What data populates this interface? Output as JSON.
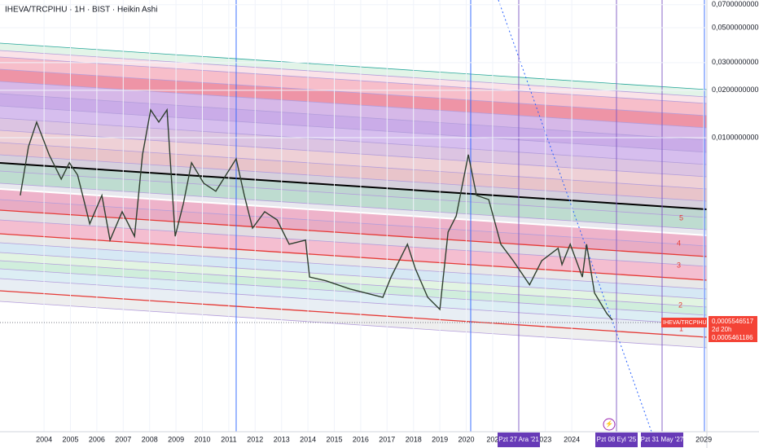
{
  "chart_data": {
    "type": "line",
    "title": "IHEVA/TRCPIHU · 1H · BIST · Heikin Ashi",
    "log_scale": true,
    "grid": true,
    "x": [
      2003.1,
      2003.41,
      2003.72,
      2004.19,
      2004.65,
      2004.96,
      2005.27,
      2005.73,
      2006.19,
      2006.5,
      2006.96,
      2007.43,
      2007.73,
      2008.04,
      2008.35,
      2008.66,
      2008.97,
      2009.28,
      2009.59,
      2010.05,
      2010.51,
      2011.28,
      2011.59,
      2011.9,
      2012.36,
      2012.83,
      2013.29,
      2013.91,
      2014.06,
      2014.68,
      2015.6,
      2016.84,
      2017.15,
      2017.77,
      2018.07,
      2018.54,
      2019,
      2019.31,
      2019.62,
      2020.08,
      2020.39,
      2020.85,
      2021.31,
      2021.78,
      2022.4,
      2022.86,
      2023.48,
      2023.63,
      2023.94,
      2024.4,
      2024.56,
      2024.86,
      2025.33,
      2025.54
    ],
    "series": [
      {
        "name": "IHEVA/TRCPIHU",
        "color": "#2f3f2f",
        "values": [
          0.00429,
          0.00878,
          0.01256,
          0.00779,
          0.00545,
          0.00692,
          0.00578,
          0.00283,
          0.00429,
          0.00223,
          0.00338,
          0.00236,
          0.00779,
          0.01502,
          0.01256,
          0.01502,
          0.00236,
          0.00381,
          0.00692,
          0.00513,
          0.00456,
          0.00734,
          0.00429,
          0.00266,
          0.00338,
          0.003,
          0.0021,
          0.00223,
          0.0013,
          0.00123,
          0.00109,
          0.000966,
          0.0013,
          0.0021,
          0.00147,
          0.000966,
          0.000808,
          0.00251,
          0.00318,
          0.00779,
          0.00429,
          0.00404,
          0.0021,
          0.00165,
          0.00116,
          0.00165,
          0.00198,
          0.00156,
          0.0021,
          0.0013,
          0.0021,
          0.00103,
          0.000761,
          0.000692
        ]
      }
    ],
    "xlim": [
      2002.33,
      2029.12
    ],
    "ylim": [
      0.000135,
      0.075
    ],
    "yticks": [
      {
        "value": 0.07,
        "label": "0,0700000000"
      },
      {
        "value": 0.05,
        "label": "0,0500000000"
      },
      {
        "value": 0.03,
        "label": "0,0300000000"
      },
      {
        "value": 0.02,
        "label": "0,0200000000"
      },
      {
        "value": 0.01,
        "label": "0,0100000000"
      }
    ],
    "xticks": [
      2004,
      2005,
      2006,
      2007,
      2008,
      2009,
      2010,
      2011,
      2012,
      2013,
      2014,
      2015,
      2016,
      2017,
      2018,
      2019,
      2020,
      {
        "value": 2021,
        "label": "202"
      },
      {
        "value": 2023,
        "label": "023"
      },
      2024,
      2029
    ],
    "date_markers": [
      "Pzt 27 Ara '21",
      "Pzt 08 Eyl '25",
      "Pzt 31 May '27"
    ],
    "channel_labels": [
      "5",
      "4",
      "3",
      "2",
      "1"
    ],
    "price_tag": {
      "symbol": "IHEVA/TRCPIHU",
      "price": "0,0005546517",
      "countdown": "2d 20h",
      "low": "0,0005461186"
    }
  }
}
